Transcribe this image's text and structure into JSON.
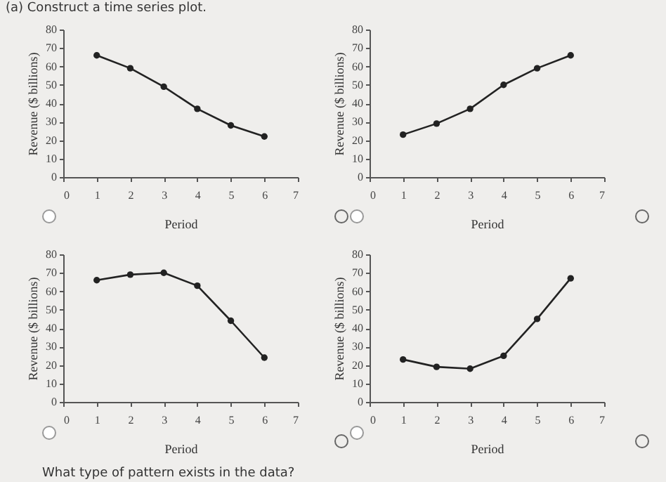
{
  "chart_data": [
    {
      "type": "line",
      "title": "(a) Construct a time series plot.",
      "xlabel": "Period",
      "ylabel": "Revenue ($ billions)",
      "x": [
        1,
        2,
        3,
        4,
        5,
        6
      ],
      "xlim": [
        0,
        7
      ],
      "xticks": [
        0,
        1,
        2,
        3,
        4,
        5,
        6,
        7
      ],
      "ylim": [
        0,
        80
      ],
      "yticks": [
        0,
        10,
        20,
        30,
        40,
        50,
        60,
        70,
        80
      ],
      "marker": "circle",
      "line_style": "solid",
      "series": [
        {
          "color": "#222222",
          "values": [
            66,
            59,
            49,
            37,
            28,
            22
          ]
        }
      ]
    },
    {
      "type": "line",
      "xlabel": "Period",
      "ylabel": "Revenue ($ billions)",
      "x": [
        1,
        2,
        3,
        4,
        5,
        6
      ],
      "xlim": [
        0,
        7
      ],
      "xticks": [
        0,
        1,
        2,
        3,
        4,
        5,
        6,
        7
      ],
      "ylim": [
        0,
        80
      ],
      "yticks": [
        0,
        10,
        20,
        30,
        40,
        50,
        60,
        70,
        80
      ],
      "marker": "circle",
      "line_style": "solid",
      "series": [
        {
          "color": "#222222",
          "values": [
            23,
            29,
            37,
            50,
            59,
            66
          ]
        }
      ]
    },
    {
      "type": "line",
      "xlabel": "Period",
      "ylabel": "Revenue ($ billions)",
      "x": [
        1,
        2,
        3,
        4,
        5,
        6
      ],
      "xlim": [
        0,
        7
      ],
      "xticks": [
        0,
        1,
        2,
        3,
        4,
        5,
        6,
        7
      ],
      "ylim": [
        0,
        80
      ],
      "yticks": [
        0,
        10,
        20,
        30,
        40,
        50,
        60,
        70,
        80
      ],
      "marker": "circle",
      "line_style": "solid",
      "annotations": [
        "What type of pattern exists in the data?"
      ],
      "series": [
        {
          "color": "#222222",
          "values": [
            66,
            69,
            70,
            63,
            44,
            24
          ]
        }
      ]
    },
    {
      "type": "line",
      "xlabel": "Period",
      "ylabel": "Revenue ($ billions)",
      "x": [
        1,
        2,
        3,
        4,
        5,
        6
      ],
      "xlim": [
        0,
        7
      ],
      "xticks": [
        0,
        1,
        2,
        3,
        4,
        5,
        6,
        7
      ],
      "ylim": [
        0,
        80
      ],
      "yticks": [
        0,
        10,
        20,
        30,
        40,
        50,
        60,
        70,
        80
      ],
      "marker": "circle",
      "line_style": "solid",
      "series": [
        {
          "color": "#222222",
          "values": [
            23,
            19,
            18,
            25,
            45,
            67
          ]
        }
      ]
    }
  ]
}
